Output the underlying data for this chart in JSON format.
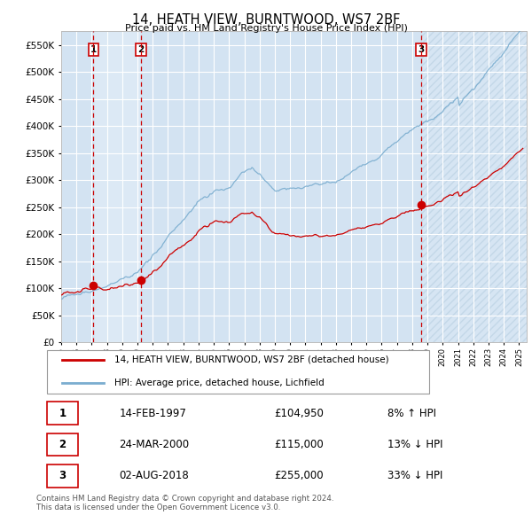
{
  "title": "14, HEATH VIEW, BURNTWOOD, WS7 2BF",
  "subtitle": "Price paid vs. HM Land Registry's House Price Index (HPI)",
  "legend_label_red": "14, HEATH VIEW, BURNTWOOD, WS7 2BF (detached house)",
  "legend_label_blue": "HPI: Average price, detached house, Lichfield",
  "transactions": [
    {
      "label": "1",
      "date": "14-FEB-1997",
      "price": 104950,
      "hpi_pct": "8% ↑ HPI",
      "x": 1997.12
    },
    {
      "label": "2",
      "date": "24-MAR-2000",
      "price": 115000,
      "hpi_pct": "13% ↓ HPI",
      "x": 2000.23
    },
    {
      "label": "3",
      "date": "02-AUG-2018",
      "price": 255000,
      "hpi_pct": "33% ↓ HPI",
      "x": 2018.59
    }
  ],
  "footer": "Contains HM Land Registry data © Crown copyright and database right 2024.\nThis data is licensed under the Open Government Licence v3.0.",
  "ylim": [
    0,
    575000
  ],
  "xlim": [
    1995.0,
    2025.5
  ],
  "yticks": [
    0,
    50000,
    100000,
    150000,
    200000,
    250000,
    300000,
    350000,
    400000,
    450000,
    500000,
    550000
  ],
  "plot_bg": "#dce9f5",
  "red_line_color": "#cc0000",
  "blue_line_color": "#7aadcf",
  "grid_color": "#ffffff",
  "table_rows": [
    [
      "1",
      "14-FEB-1997",
      "£104,950",
      "8% ↑ HPI"
    ],
    [
      "2",
      "24-MAR-2000",
      "£115,000",
      "13% ↓ HPI"
    ],
    [
      "3",
      "02-AUG-2018",
      "£255,000",
      "33% ↓ HPI"
    ]
  ]
}
